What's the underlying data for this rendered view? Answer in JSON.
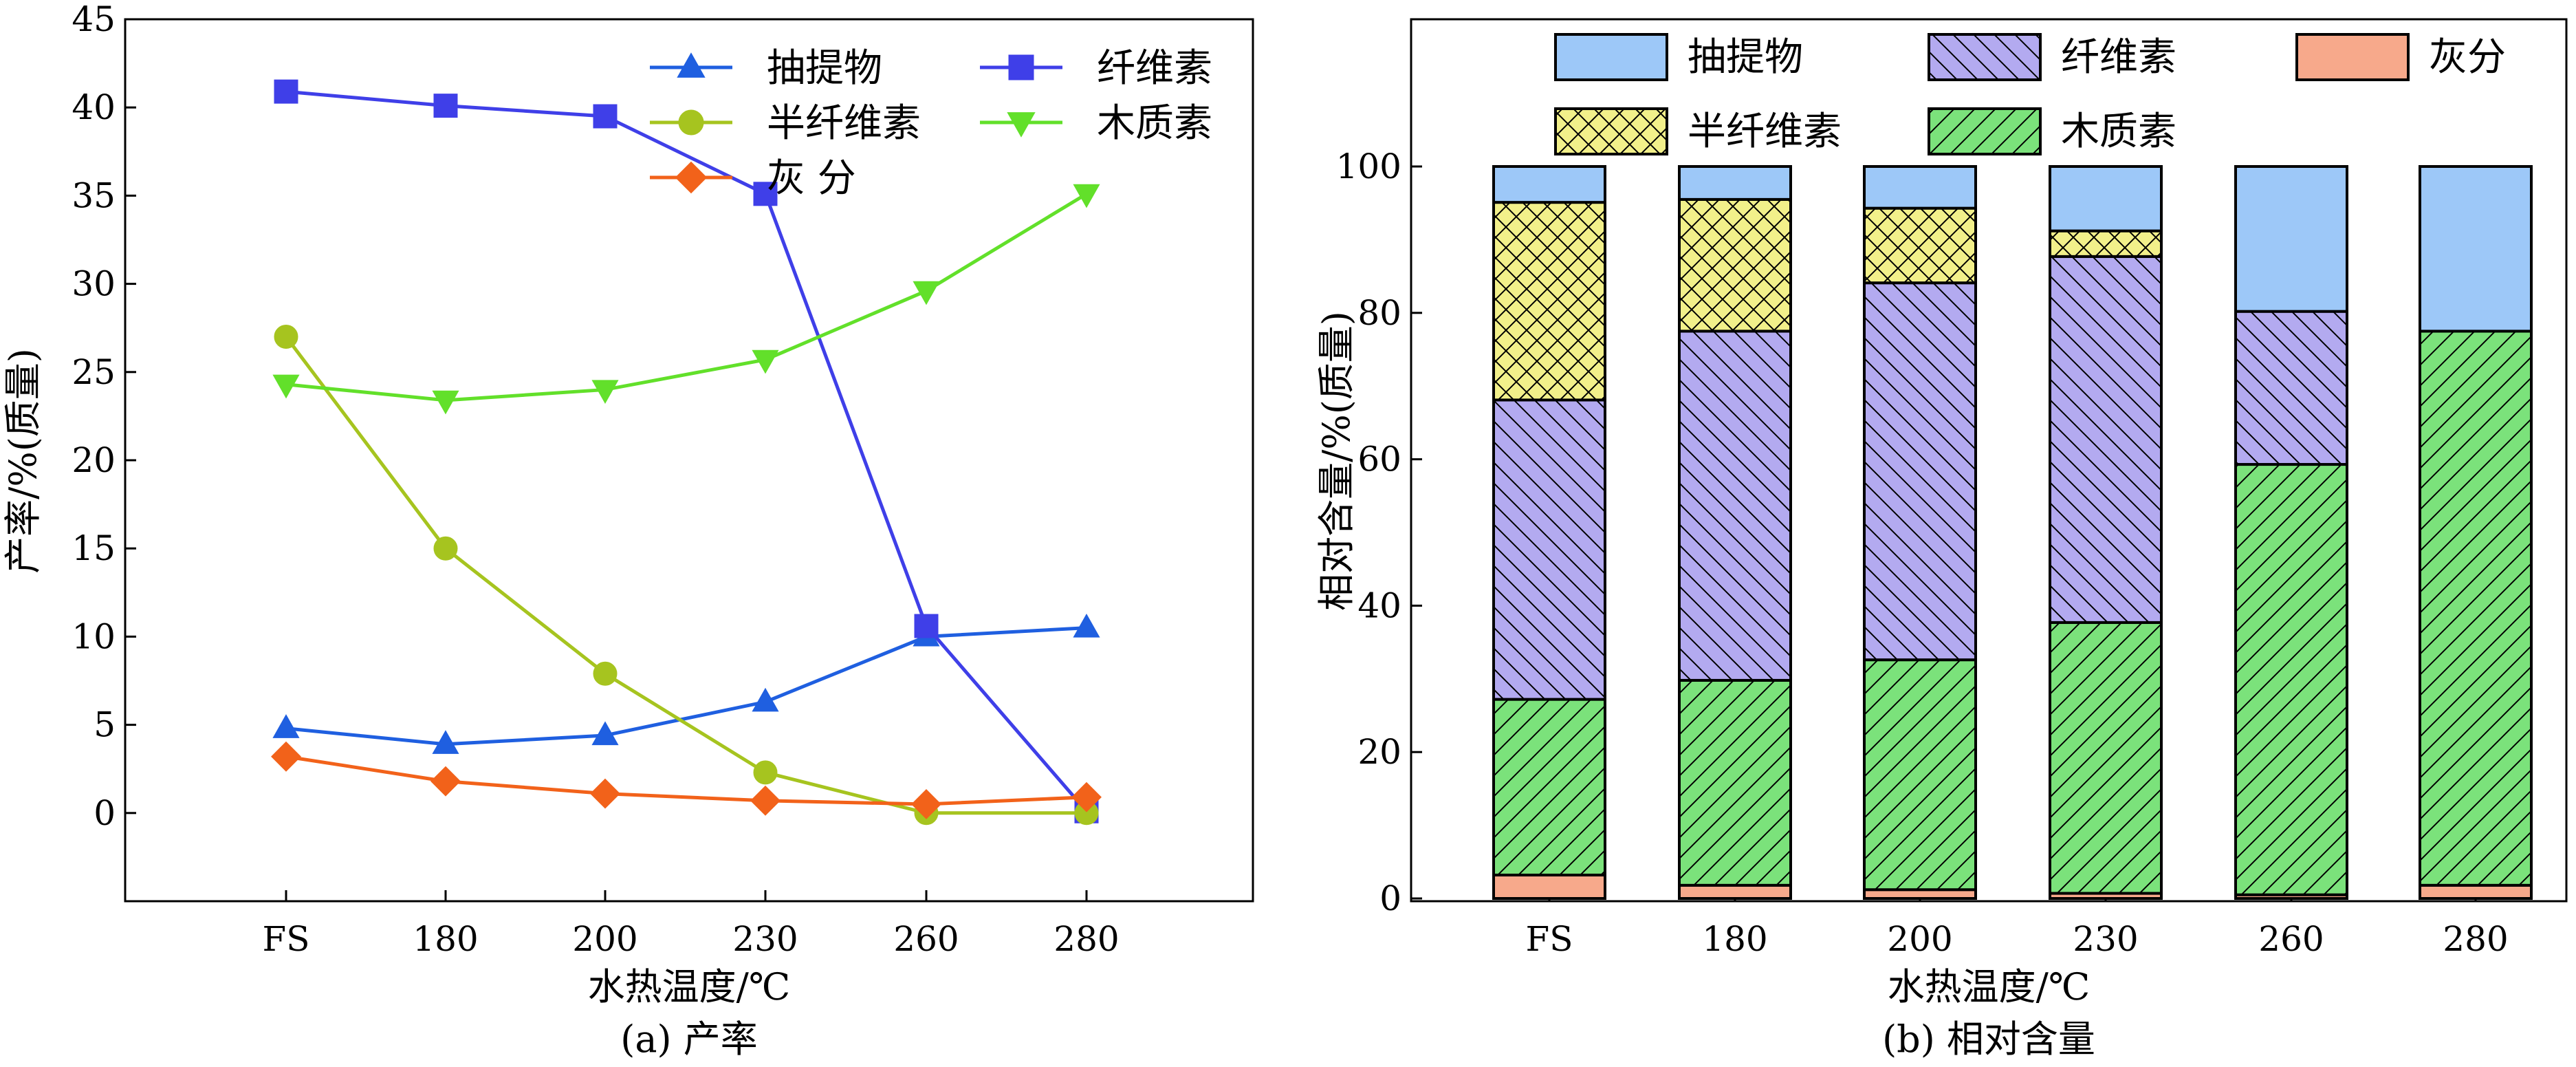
{
  "chart_data": [
    {
      "type": "line",
      "caption": "(a) 产率",
      "xlabel": "水热温度/℃",
      "ylabel": "产率/%(质量)",
      "ylim": [
        -5,
        45
      ],
      "yticks": [
        0,
        5,
        10,
        15,
        20,
        25,
        30,
        35,
        40,
        45
      ],
      "categories": [
        "FS",
        "180",
        "200",
        "230",
        "260",
        "280"
      ],
      "legend_position": "top-right",
      "series": [
        {
          "name": "抽提物",
          "marker": "triangle-up",
          "color": "#1f5fe0",
          "values": [
            4.8,
            3.9,
            4.4,
            6.3,
            10.0,
            10.5
          ]
        },
        {
          "name": "纤维素",
          "marker": "square",
          "color": "#3f3fe8",
          "values": [
            40.9,
            40.1,
            39.5,
            35.1,
            10.6,
            0.1
          ]
        },
        {
          "name": "半纤维素",
          "marker": "circle",
          "color": "#a6c41f",
          "values": [
            27.0,
            15.0,
            7.9,
            2.3,
            0.0,
            0.0
          ]
        },
        {
          "name": "木质素",
          "marker": "triangle-down",
          "color": "#62e02a",
          "values": [
            24.3,
            23.4,
            24.0,
            25.7,
            29.6,
            35.1
          ]
        },
        {
          "name": "灰 分",
          "marker": "diamond",
          "color": "#f2621a",
          "values": [
            3.2,
            1.8,
            1.1,
            0.7,
            0.5,
            0.9
          ]
        }
      ]
    },
    {
      "type": "bar",
      "stacked": true,
      "caption": "(b) 相对含量",
      "xlabel": "水热温度/℃",
      "ylabel": "相对含量/%(质量)",
      "ylim": [
        0,
        100
      ],
      "yticks": [
        0,
        20,
        40,
        60,
        80,
        100
      ],
      "categories": [
        "FS",
        "180",
        "200",
        "230",
        "260",
        "280"
      ],
      "legend_position": "top",
      "series": [
        {
          "name": "灰分",
          "color": "#f7a98b",
          "pattern": "none",
          "values": [
            3.2,
            1.8,
            1.2,
            0.7,
            0.5,
            1.8
          ]
        },
        {
          "name": "木质素",
          "color": "#7be27b",
          "pattern": "hatch-fwd",
          "values": [
            24.0,
            28.0,
            31.4,
            37.0,
            58.8,
            75.7
          ]
        },
        {
          "name": "纤维素",
          "color": "#b3aaf0",
          "pattern": "hatch-back",
          "values": [
            40.9,
            47.7,
            51.5,
            50.0,
            20.9,
            0.0
          ]
        },
        {
          "name": "半纤维素",
          "color": "#f2f08a",
          "pattern": "crosshatch",
          "values": [
            27.0,
            18.0,
            10.2,
            3.5,
            0.0,
            0.0
          ]
        },
        {
          "name": "抽提物",
          "color": "#9dc8f8",
          "pattern": "none",
          "values": [
            4.9,
            4.5,
            5.7,
            8.8,
            19.8,
            22.5
          ]
        }
      ],
      "legend_order": [
        "抽提物",
        "纤维素",
        "灰分",
        "半纤维素",
        "木质素"
      ]
    }
  ]
}
